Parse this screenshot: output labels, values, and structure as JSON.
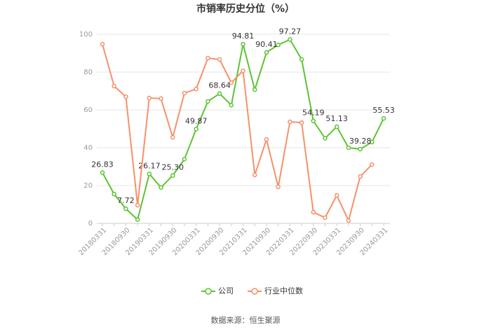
{
  "chart_data": {
    "type": "line",
    "title": "市销率历史分位（%）",
    "categories": [
      "20180331",
      null,
      "20180930",
      null,
      "20190331",
      null,
      "20190930",
      null,
      "20200331",
      null,
      "20200930",
      null,
      "20210331",
      null,
      "20210930",
      null,
      "20220331",
      null,
      "20220930",
      null,
      "20230331",
      null,
      "20230930",
      null,
      "20240331"
    ],
    "series": [
      {
        "name": "公司",
        "color": "#5cc433",
        "values": [
          26.83,
          15.5,
          7.72,
          2,
          26.17,
          19,
          25.3,
          34,
          49.87,
          64.5,
          68.64,
          62.5,
          94.81,
          70.7,
          90.41,
          94.4,
          97.27,
          86.7,
          54.19,
          45,
          51.13,
          40,
          39.28,
          43,
          55.53
        ],
        "value_labels": [
          "26.83",
          null,
          "7.72",
          null,
          "26.17",
          null,
          "25.30",
          null,
          "49.87",
          null,
          "68.64",
          null,
          "94.81",
          null,
          "90.41",
          null,
          "97.27",
          null,
          "54.19",
          null,
          "51.13",
          null,
          "39.28",
          null,
          "55.53"
        ]
      },
      {
        "name": "行业中位数",
        "color": "#f5916a",
        "values": [
          94.8,
          72.6,
          67,
          9.6,
          66.3,
          66,
          45.5,
          68.9,
          71.1,
          87.4,
          86.7,
          74.4,
          80.7,
          25.6,
          44.4,
          19.3,
          53.7,
          53.3,
          5.9,
          3,
          14.8,
          1.5,
          24.8,
          31.1,
          null
        ]
      }
    ],
    "ylim": [
      0,
      100
    ],
    "yticks": [
      0,
      20,
      40,
      60,
      80,
      100
    ],
    "grid": true,
    "source": "数据来源：恒生聚源"
  }
}
